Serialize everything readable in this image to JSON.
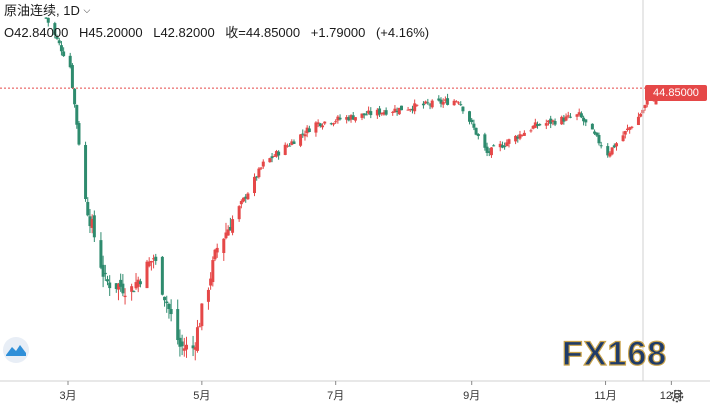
{
  "header": {
    "symbol": "原油连续",
    "interval": "1D",
    "dropdown_icon": "chevron-down-icon",
    "open": "O42.84000",
    "high": "H45.20000",
    "low": "L42.82000",
    "close": "收=44.85000",
    "change": "+1.79000",
    "change_pct": "(+4.16%)"
  },
  "price_label": "44.85000",
  "watermark": "FX168",
  "icons": {
    "left_logo": "wave-logo-icon",
    "settings": "gear-icon"
  },
  "colors": {
    "up": "#e54848",
    "down": "#2e8b6e",
    "price_line": "#e54848",
    "header_text": "#1a1a1a"
  },
  "chart_data": {
    "type": "candlestick",
    "title": "",
    "xlabel": "",
    "ylabel": "",
    "x_ticks": [
      "3月",
      "5月",
      "7月",
      "9月",
      "11月",
      "12月"
    ],
    "y_axis_labels_visible": false,
    "last_price": 44.85,
    "last_change": 1.79,
    "last_change_pct": 4.16,
    "approx_price_path": [
      {
        "date": "2020-02-20",
        "close": 53.5
      },
      {
        "date": "2020-03-02",
        "close": 47.5
      },
      {
        "date": "2020-03-09",
        "close": 31.1
      },
      {
        "date": "2020-03-18",
        "close": 21.0
      },
      {
        "date": "2020-03-30",
        "close": 20.1
      },
      {
        "date": "2020-04-09",
        "close": 24.0
      },
      {
        "date": "2020-04-21",
        "close": 13.0
      },
      {
        "date": "2020-04-27",
        "close": 12.8
      },
      {
        "date": "2020-05-08",
        "close": 25.2
      },
      {
        "date": "2020-05-29",
        "close": 35.5
      },
      {
        "date": "2020-06-22",
        "close": 40.5
      },
      {
        "date": "2020-07-21",
        "close": 41.9
      },
      {
        "date": "2020-08-26",
        "close": 43.4
      },
      {
        "date": "2020-09-08",
        "close": 36.8
      },
      {
        "date": "2020-09-30",
        "close": 40.2
      },
      {
        "date": "2020-10-20",
        "close": 41.5
      },
      {
        "date": "2020-11-02",
        "close": 36.8
      },
      {
        "date": "2020-11-16",
        "close": 41.3
      },
      {
        "date": "2020-11-24",
        "close": 44.85
      }
    ]
  }
}
